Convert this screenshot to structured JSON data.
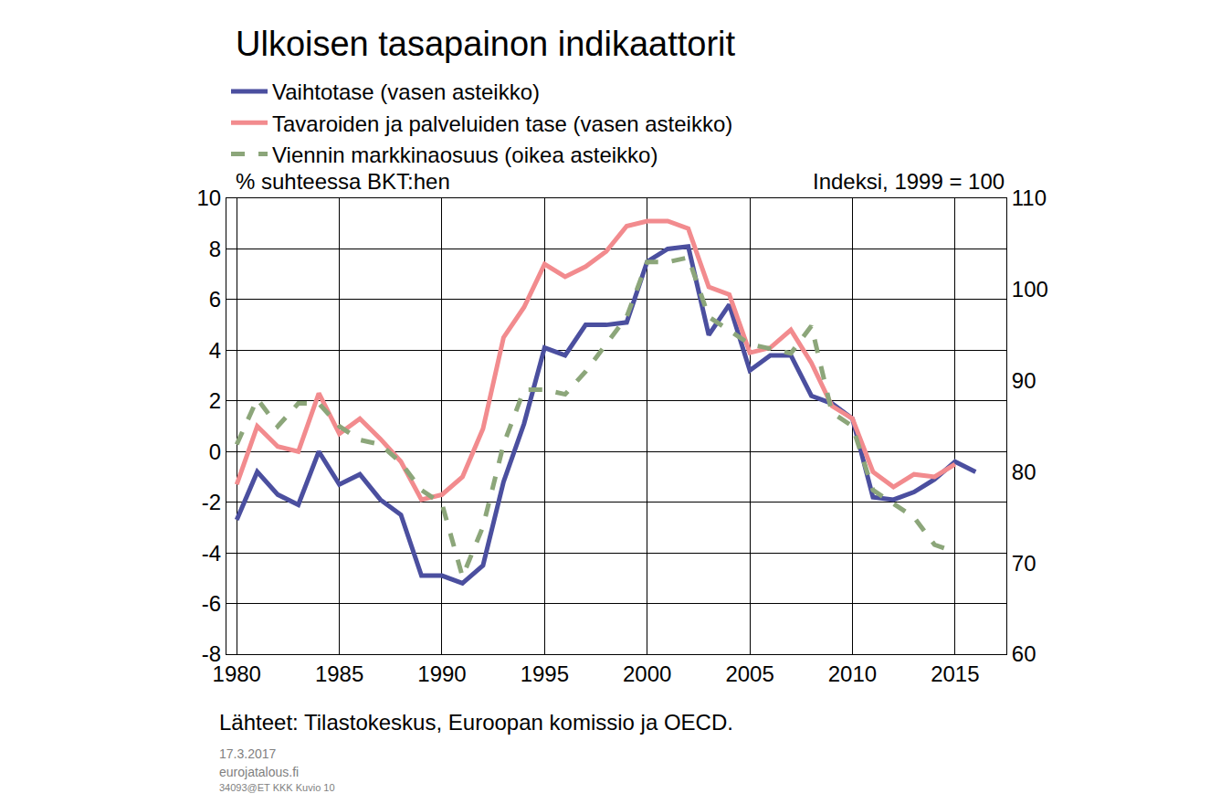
{
  "chart_data": {
    "type": "line",
    "title": "Ulkoisen tasapainon indikaattorit",
    "yaxis_title": "% suhteessa BKT:hen",
    "y2axis_title": "Indeksi, 1999 = 100",
    "annotations": [
      "Lähteet: Tilastokeskus, Euroopan komissio ja OECD.",
      "17.3.2017",
      "eurojatalous.fi",
      "34093@ET KKK Kuvio 10"
    ],
    "x": [
      1980,
      1981,
      1982,
      1983,
      1984,
      1985,
      1986,
      1987,
      1988,
      1989,
      1990,
      1991,
      1992,
      1993,
      1994,
      1995,
      1996,
      1997,
      1998,
      1999,
      2000,
      2001,
      2002,
      2003,
      2004,
      2005,
      2006,
      2007,
      2008,
      2009,
      2010,
      2011,
      2012,
      2013,
      2014,
      2015,
      2016
    ],
    "xlim": [
      1979.5,
      2017.5
    ],
    "xticks": [
      1980,
      1985,
      1990,
      1995,
      2000,
      2005,
      2010,
      2015
    ],
    "ylim": [
      -8,
      10
    ],
    "yticks": [
      -8,
      -6,
      -4,
      -2,
      0,
      2,
      4,
      6,
      8,
      10
    ],
    "y2lim": [
      60,
      110
    ],
    "y2ticks": [
      60,
      70,
      80,
      90,
      100,
      110
    ],
    "grid": true,
    "legend": "top left",
    "series": [
      {
        "name": "Vaihtotase (vasen asteikko)",
        "color": "#4b4f9f",
        "line_style": "solid",
        "axis": "y",
        "values": [
          -2.7,
          -0.8,
          -1.7,
          -2.1,
          0.0,
          -1.3,
          -0.9,
          -1.9,
          -2.5,
          -4.9,
          -4.9,
          -5.2,
          -4.5,
          -1.2,
          1.1,
          4.1,
          3.8,
          5.0,
          5.0,
          5.1,
          7.5,
          8.0,
          8.1,
          4.6,
          5.8,
          3.2,
          3.8,
          3.8,
          2.2,
          1.9,
          1.3,
          -1.8,
          -1.9,
          -1.6,
          -1.1,
          -0.4,
          -0.8
        ]
      },
      {
        "name": "Tavaroiden ja palveluiden tase (vasen asteikko)",
        "color": "#f28b8e",
        "line_style": "solid",
        "axis": "y",
        "values": [
          -1.3,
          1.0,
          0.2,
          0.0,
          2.3,
          0.7,
          1.3,
          0.5,
          -0.4,
          -1.9,
          -1.7,
          -1.0,
          0.9,
          4.5,
          5.7,
          7.4,
          6.9,
          7.3,
          7.9,
          8.9,
          9.1,
          9.1,
          8.8,
          6.5,
          6.2,
          3.9,
          4.1,
          4.8,
          3.5,
          1.8,
          1.3,
          -0.8,
          -1.4,
          -0.9,
          -1.0,
          -0.5,
          null
        ]
      },
      {
        "name": "Viennin markkinaosuus (oikea asteikko)",
        "color": "#8ca67a",
        "line_style": "dash",
        "axis": "y2",
        "values": [
          83,
          88,
          85,
          87.5,
          87.5,
          85,
          83.5,
          83,
          81,
          78,
          76.5,
          68.5,
          74,
          83,
          89,
          89,
          88.5,
          91,
          94,
          97,
          103,
          103,
          103.5,
          97,
          95.5,
          94,
          93.5,
          93,
          96,
          86.5,
          85,
          78,
          76.5,
          75,
          72,
          71.2,
          null
        ]
      }
    ]
  }
}
